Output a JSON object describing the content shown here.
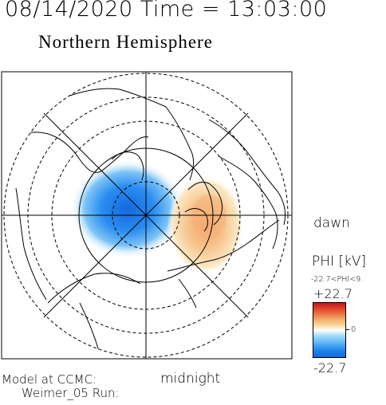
{
  "header": {
    "datetime": "08/14/2020 Time = 13:03:00"
  },
  "map": {
    "title": "Northern Hemisphere",
    "labels": {
      "dawn": "dawn",
      "midnight": "midnight"
    },
    "projection": "polar-stereographic",
    "latitude_circles": "dashed",
    "meridian_lines": "solid"
  },
  "footer": {
    "model_line1": "Model at CCMC:",
    "model_line2": "Weimer_05 Run:"
  },
  "legend": {
    "variable": "PHI [kV]",
    "range_text": "-22.7<PHI<9.",
    "max": "+22.7",
    "mid": "0",
    "min": "-22.7",
    "colors": {
      "positive": "#c8141e",
      "zero": "#ffffff",
      "negative": "#1468dc"
    }
  },
  "potential_cells": [
    {
      "sign": "negative",
      "region": "dusk-noon side"
    },
    {
      "sign": "positive",
      "region": "dawn side"
    }
  ]
}
